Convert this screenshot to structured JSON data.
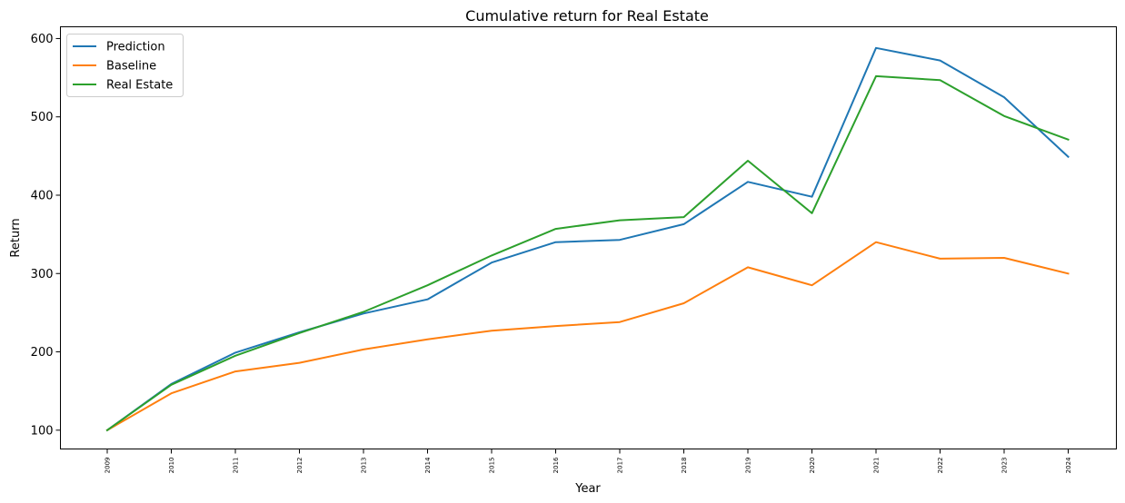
{
  "chart_data": {
    "type": "line",
    "title": "Cumulative return for Real Estate",
    "xlabel": "Year",
    "ylabel": "Return",
    "categories": [
      "2009",
      "2010",
      "2011",
      "2012",
      "2013",
      "2014",
      "2015",
      "2016",
      "2017",
      "2018",
      "2019",
      "2020",
      "2021",
      "2022",
      "2023",
      "2024"
    ],
    "ylim": [
      76,
      615
    ],
    "yticks": [
      100,
      200,
      300,
      400,
      500,
      600
    ],
    "grid": false,
    "legend_position": "top-left",
    "series": [
      {
        "name": "Prediction",
        "color": "#1f77b4",
        "values": [
          100,
          159,
          199,
          225,
          249,
          267,
          314,
          340,
          343,
          363,
          417,
          398,
          588,
          572,
          525,
          449
        ]
      },
      {
        "name": "Baseline",
        "color": "#ff7f0e",
        "values": [
          100,
          147,
          175,
          186,
          203,
          216,
          227,
          233,
          238,
          262,
          308,
          285,
          340,
          319,
          320,
          300
        ]
      },
      {
        "name": "Real Estate",
        "color": "#2ca02c",
        "values": [
          100,
          158,
          195,
          224,
          251,
          285,
          323,
          357,
          368,
          372,
          444,
          377,
          552,
          547,
          501,
          471
        ]
      }
    ]
  }
}
